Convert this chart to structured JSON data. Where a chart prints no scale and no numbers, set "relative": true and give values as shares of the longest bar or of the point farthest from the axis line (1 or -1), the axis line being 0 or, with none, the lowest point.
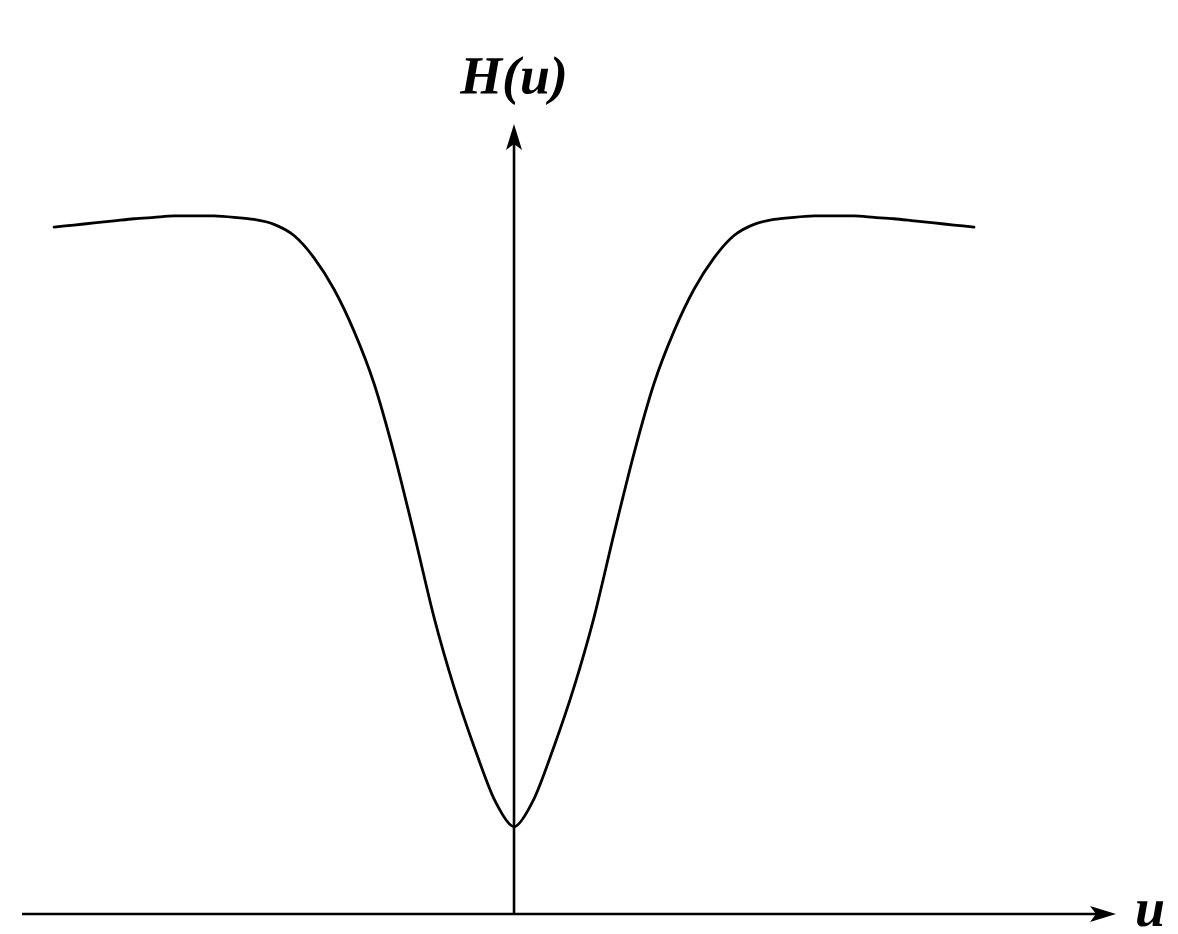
{
  "chart_data": {
    "type": "line",
    "xlabel": "u",
    "ylabel": "H(u)",
    "relative": true,
    "categories": [
      null,
      null,
      null,
      null,
      null,
      null,
      null,
      null,
      null,
      null,
      null,
      null,
      null,
      null,
      null,
      null,
      null,
      null,
      null,
      null,
      null,
      null,
      null,
      null,
      null,
      null,
      null,
      null,
      null,
      null,
      null,
      null,
      null,
      null,
      null,
      null,
      null,
      null,
      null,
      null,
      null,
      null,
      null,
      null,
      null,
      null,
      null
    ],
    "series": [
      {
        "color": "#000000",
        "values": [
          0.984,
          0.987,
          0.99,
          0.993,
          0.996,
          0.998,
          1.0,
          1.0,
          1.0,
          0.998,
          0.995,
          0.988,
          0.972,
          0.94,
          0.895,
          0.835,
          0.76,
          0.66,
          0.545,
          0.425,
          0.325,
          0.24,
          0.165,
          0.125,
          0.165,
          0.24,
          0.325,
          0.425,
          0.545,
          0.66,
          0.76,
          0.835,
          0.895,
          0.94,
          0.972,
          0.988,
          0.995,
          0.998,
          1.0,
          1.0,
          1.0,
          0.998,
          0.996,
          0.993,
          0.99,
          0.987,
          0.984
        ]
      }
    ]
  }
}
